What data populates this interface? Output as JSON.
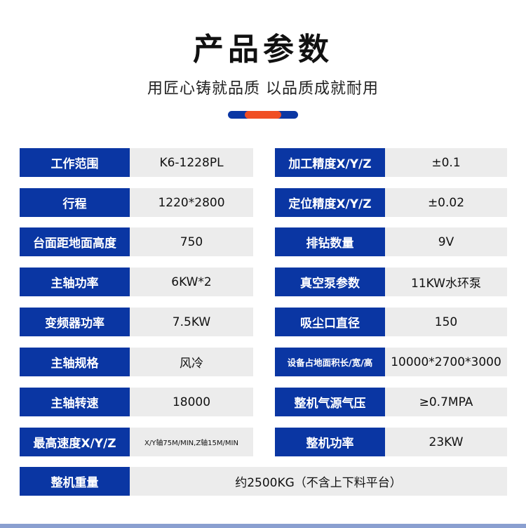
{
  "header": {
    "title": "产品参数",
    "subtitle": "用匠心铸就品质 以品质成就耐用"
  },
  "colors": {
    "label_bg": "#0a36a3",
    "value_bg": "#ececec",
    "accent": "#f04e23"
  },
  "rows": [
    {
      "l1": "工作范围",
      "v1": "K6-1228PL",
      "l2": "加工精度X/Y/Z",
      "v2": "±0.1"
    },
    {
      "l1": "行程",
      "v1": "1220*2800",
      "l2": "定位精度X/Y/Z",
      "v2": "±0.02"
    },
    {
      "l1": "台面距地面高度",
      "v1": "750",
      "l2": "排钻数量",
      "v2": "9V"
    },
    {
      "l1": "主轴功率",
      "v1": "6KW*2",
      "l2": "真空泵参数",
      "v2": "11KW水环泵"
    },
    {
      "l1": "变频器功率",
      "v1": "7.5KW",
      "l2": "吸尘口直径",
      "v2": "150"
    },
    {
      "l1": "主轴规格",
      "v1": "风冷",
      "l2": "设备占地面积长/宽/高",
      "v2": "10000*2700*3000"
    },
    {
      "l1": "主轴转速",
      "v1": "18000",
      "l2": "整机气源气压",
      "v2": "≥0.7MPA"
    },
    {
      "l1": "最高速度X/Y/Z",
      "v1": "X/Y轴75M/MIN,Z轴15M/MIN",
      "l2": "整机功率",
      "v2": "23KW"
    }
  ],
  "last": {
    "label": "整机重量",
    "value": "约2500KG（不含上下料平台）"
  }
}
